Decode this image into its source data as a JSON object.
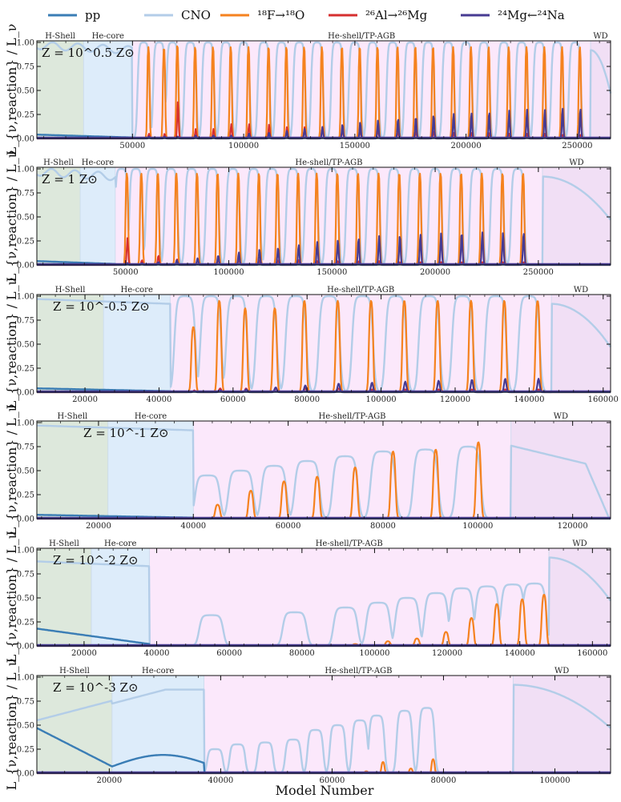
{
  "figure": {
    "xlabel": "Model Number",
    "ylabel": "L_{ν,reaction} / L_ν"
  },
  "legend": [
    {
      "key": "pp",
      "label": "pp",
      "color": "#3a7db5"
    },
    {
      "key": "cno",
      "label": "CNO",
      "color": "#b3cde8"
    },
    {
      "key": "f18",
      "label": "¹⁸F→¹⁸O",
      "color": "#f5821f"
    },
    {
      "key": "al26",
      "label": "²⁶Al→²⁶Mg",
      "color": "#d62f2f"
    },
    {
      "key": "mg24",
      "label": "²⁴Mg←²⁴Na",
      "color": "#473b92"
    }
  ],
  "phase_colors": {
    "hshell": "#dde8dc",
    "hecore": "#ddecfa",
    "agb": "#fbe8fb",
    "wd": "#f1dff5"
  },
  "chart_data": [
    {
      "type": "line",
      "metallicity": "Z = 10^0.5 Z⊙",
      "xlim": [
        7000,
        265000
      ],
      "ylim": [
        0,
        1
      ],
      "xticks": [
        50000,
        100000,
        150000,
        200000,
        250000
      ],
      "yticks": [
        "0.00",
        "0.25",
        "0.50",
        "0.75",
        "1.00"
      ],
      "phases": [
        {
          "name": "H-Shell",
          "start": 7000,
          "end": 28000,
          "kind": "hshell"
        },
        {
          "name": "He-core",
          "start": 28000,
          "end": 50000,
          "kind": "hecore"
        },
        {
          "name": "He-shell/TP-AGB",
          "start": 50000,
          "end": 256000,
          "kind": "agb"
        },
        {
          "name": "WD",
          "start": 256000,
          "end": 265000,
          "kind": "wd"
        }
      ],
      "pulses": [
        {
          "center": 55000,
          "cno": 1.0,
          "f18": 0.98,
          "al26": 0.05,
          "mg24": 0.02
        },
        {
          "center": 62000,
          "cno": 1.0,
          "f18": 0.97,
          "al26": 0.05,
          "mg24": 0.02
        },
        {
          "center": 68000,
          "cno": 1.0,
          "f18": 1.0,
          "al26": 0.39,
          "mg24": 0.02
        },
        {
          "center": 76000,
          "cno": 1.0,
          "f18": 0.98,
          "al26": 0.1,
          "mg24": 0.03
        },
        {
          "center": 84000,
          "cno": 1.0,
          "f18": 0.98,
          "al26": 0.1,
          "mg24": 0.03
        },
        {
          "center": 92000,
          "cno": 1.0,
          "f18": 0.98,
          "al26": 0.15,
          "mg24": 0.03
        },
        {
          "center": 100000,
          "cno": 1.0,
          "f18": 0.98,
          "al26": 0.15,
          "mg24": 0.05
        },
        {
          "center": 109000,
          "cno": 1.0,
          "f18": 0.98,
          "al26": 0.15,
          "mg24": 0.06
        },
        {
          "center": 117000,
          "cno": 1.0,
          "f18": 0.98,
          "al26": 0.12,
          "mg24": 0.08
        },
        {
          "center": 125000,
          "cno": 1.0,
          "f18": 0.98,
          "al26": 0.12,
          "mg24": 0.1
        },
        {
          "center": 133000,
          "cno": 1.0,
          "f18": 0.98,
          "al26": 0.12,
          "mg24": 0.12
        },
        {
          "center": 142000,
          "cno": 1.0,
          "f18": 0.98,
          "al26": 0.1,
          "mg24": 0.15
        },
        {
          "center": 150000,
          "cno": 1.0,
          "f18": 0.98,
          "al26": 0.1,
          "mg24": 0.17
        },
        {
          "center": 158000,
          "cno": 1.0,
          "f18": 0.98,
          "al26": 0.1,
          "mg24": 0.19
        },
        {
          "center": 167000,
          "cno": 1.0,
          "f18": 0.98,
          "al26": 0.08,
          "mg24": 0.21
        },
        {
          "center": 175000,
          "cno": 1.0,
          "f18": 0.98,
          "al26": 0.08,
          "mg24": 0.23
        },
        {
          "center": 183000,
          "cno": 1.0,
          "f18": 0.98,
          "al26": 0.08,
          "mg24": 0.25
        },
        {
          "center": 192000,
          "cno": 1.0,
          "f18": 0.98,
          "al26": 0.06,
          "mg24": 0.26
        },
        {
          "center": 200000,
          "cno": 1.0,
          "f18": 0.98,
          "al26": 0.06,
          "mg24": 0.27
        },
        {
          "center": 208000,
          "cno": 1.0,
          "f18": 0.98,
          "al26": 0.06,
          "mg24": 0.28
        },
        {
          "center": 217000,
          "cno": 1.0,
          "f18": 0.98,
          "al26": 0.05,
          "mg24": 0.29
        },
        {
          "center": 225000,
          "cno": 1.0,
          "f18": 0.98,
          "al26": 0.05,
          "mg24": 0.3
        },
        {
          "center": 233000,
          "cno": 1.0,
          "f18": 0.98,
          "al26": 0.05,
          "mg24": 0.3
        },
        {
          "center": 241000,
          "cno": 1.0,
          "f18": 0.98,
          "al26": 0.04,
          "mg24": 0.32
        },
        {
          "center": 249000,
          "cno": 1.0,
          "f18": 0.98,
          "al26": 0.04,
          "mg24": 0.32
        }
      ]
    },
    {
      "type": "line",
      "metallicity": "Z = 1 Z⊙",
      "xlim": [
        7000,
        285000
      ],
      "ylim": [
        0,
        1
      ],
      "xticks": [
        50000,
        100000,
        150000,
        200000,
        250000
      ],
      "yticks": [
        "0.00",
        "0.25",
        "0.50",
        "0.75",
        "1.00"
      ],
      "phases": [
        {
          "name": "H-Shell",
          "start": 7000,
          "end": 28000,
          "kind": "hshell"
        },
        {
          "name": "He-core",
          "start": 28000,
          "end": 45000,
          "kind": "hecore"
        },
        {
          "name": "He-shell/TP-AGB",
          "start": 45000,
          "end": 252000,
          "kind": "agb"
        },
        {
          "name": "WD",
          "start": 252000,
          "end": 285000,
          "kind": "wd"
        }
      ],
      "pulses": [
        {
          "center": 48000,
          "cno": 1.0,
          "f18": 0.98,
          "al26": 0.28,
          "mg24": 0.02
        },
        {
          "center": 55000,
          "cno": 1.0,
          "f18": 0.98,
          "al26": 0.05,
          "mg24": 0.02
        },
        {
          "center": 63000,
          "cno": 1.0,
          "f18": 0.98,
          "al26": 0.1,
          "mg24": 0.03
        },
        {
          "center": 72000,
          "cno": 1.0,
          "f18": 0.98,
          "al26": 0.06,
          "mg24": 0.05
        },
        {
          "center": 82000,
          "cno": 1.0,
          "f18": 0.98,
          "al26": 0.06,
          "mg24": 0.07
        },
        {
          "center": 92000,
          "cno": 1.0,
          "f18": 0.98,
          "al26": 0.06,
          "mg24": 0.1
        },
        {
          "center": 102000,
          "cno": 1.0,
          "f18": 0.98,
          "al26": 0.06,
          "mg24": 0.13
        },
        {
          "center": 112000,
          "cno": 1.0,
          "f18": 0.98,
          "al26": 0.05,
          "mg24": 0.16
        },
        {
          "center": 121000,
          "cno": 1.0,
          "f18": 0.98,
          "al26": 0.05,
          "mg24": 0.18
        },
        {
          "center": 131000,
          "cno": 1.0,
          "f18": 0.98,
          "al26": 0.05,
          "mg24": 0.21
        },
        {
          "center": 140000,
          "cno": 1.0,
          "f18": 0.98,
          "al26": 0.04,
          "mg24": 0.24
        },
        {
          "center": 150000,
          "cno": 1.0,
          "f18": 0.98,
          "al26": 0.04,
          "mg24": 0.26
        },
        {
          "center": 160000,
          "cno": 1.0,
          "f18": 0.98,
          "al26": 0.04,
          "mg24": 0.28
        },
        {
          "center": 170000,
          "cno": 1.0,
          "f18": 0.98,
          "al26": 0.04,
          "mg24": 0.3
        },
        {
          "center": 180000,
          "cno": 1.0,
          "f18": 0.98,
          "al26": 0.03,
          "mg24": 0.31
        },
        {
          "center": 190000,
          "cno": 1.0,
          "f18": 0.98,
          "al26": 0.03,
          "mg24": 0.32
        },
        {
          "center": 200000,
          "cno": 1.0,
          "f18": 0.98,
          "al26": 0.03,
          "mg24": 0.33
        },
        {
          "center": 210000,
          "cno": 1.0,
          "f18": 0.98,
          "al26": 0.03,
          "mg24": 0.34
        },
        {
          "center": 220000,
          "cno": 1.0,
          "f18": 0.98,
          "al26": 0.03,
          "mg24": 0.34
        },
        {
          "center": 230000,
          "cno": 1.0,
          "f18": 0.98,
          "al26": 0.03,
          "mg24": 0.34
        },
        {
          "center": 240000,
          "cno": 1.0,
          "f18": 0.98,
          "al26": 0.03,
          "mg24": 0.34
        }
      ]
    },
    {
      "type": "line",
      "metallicity": "Z = 10^-0.5 Z⊙",
      "xlim": [
        7000,
        162000
      ],
      "ylim": [
        0,
        1
      ],
      "xticks": [
        20000,
        40000,
        60000,
        80000,
        100000,
        120000,
        140000,
        160000
      ],
      "yticks": [
        "0.00",
        "0.25",
        "0.50",
        "0.75",
        "1.00"
      ],
      "phases": [
        {
          "name": "H-Shell",
          "start": 7000,
          "end": 25000,
          "kind": "hshell"
        },
        {
          "name": "He-core",
          "start": 25000,
          "end": 43000,
          "kind": "hecore"
        },
        {
          "name": "He-shell/TP-AGB",
          "start": 43000,
          "end": 146000,
          "kind": "agb"
        },
        {
          "name": "WD",
          "start": 146000,
          "end": 162000,
          "kind": "wd"
        }
      ],
      "pulses": [
        {
          "center": 47000,
          "cno": 1.0,
          "f18": 0.7,
          "al26": 0.02,
          "mg24": 0.01
        },
        {
          "center": 54000,
          "cno": 1.0,
          "f18": 0.98,
          "al26": 0.04,
          "mg24": 0.02
        },
        {
          "center": 61000,
          "cno": 1.0,
          "f18": 0.9,
          "al26": 0.04,
          "mg24": 0.03
        },
        {
          "center": 69000,
          "cno": 1.0,
          "f18": 0.9,
          "al26": 0.04,
          "mg24": 0.05
        },
        {
          "center": 77000,
          "cno": 1.0,
          "f18": 0.98,
          "al26": 0.04,
          "mg24": 0.07
        },
        {
          "center": 86000,
          "cno": 1.0,
          "f18": 0.98,
          "al26": 0.04,
          "mg24": 0.09
        },
        {
          "center": 95000,
          "cno": 1.0,
          "f18": 0.98,
          "al26": 0.03,
          "mg24": 0.1
        },
        {
          "center": 104000,
          "cno": 1.0,
          "f18": 0.98,
          "al26": 0.03,
          "mg24": 0.11
        },
        {
          "center": 113000,
          "cno": 1.0,
          "f18": 0.98,
          "al26": 0.03,
          "mg24": 0.12
        },
        {
          "center": 122000,
          "cno": 1.0,
          "f18": 0.98,
          "al26": 0.03,
          "mg24": 0.13
        },
        {
          "center": 131000,
          "cno": 1.0,
          "f18": 0.98,
          "al26": 0.03,
          "mg24": 0.14
        },
        {
          "center": 140000,
          "cno": 1.0,
          "f18": 0.98,
          "al26": 0.03,
          "mg24": 0.14
        }
      ]
    },
    {
      "type": "line",
      "metallicity": "Z = 10^-1 Z⊙",
      "xlim": [
        7000,
        128000
      ],
      "ylim": [
        0,
        1
      ],
      "xticks": [
        20000,
        40000,
        60000,
        80000,
        100000,
        120000
      ],
      "yticks": [
        "0.00",
        "0.25",
        "0.50",
        "0.75",
        "1.00"
      ],
      "phases": [
        {
          "name": "H-Shell",
          "start": 7000,
          "end": 22000,
          "kind": "hshell"
        },
        {
          "name": "He-core",
          "start": 22000,
          "end": 40000,
          "kind": "hecore"
        },
        {
          "name": "He-shell/TP-AGB",
          "start": 40000,
          "end": 107000,
          "kind": "agb"
        },
        {
          "name": "WD",
          "start": 107000,
          "end": 128000,
          "kind": "wd"
        }
      ],
      "pulses": [
        {
          "center": 43000,
          "cno": 0.45,
          "f18": 0.15,
          "al26": 0.0,
          "mg24": 0.0
        },
        {
          "center": 50000,
          "cno": 0.5,
          "f18": 0.3,
          "al26": 0.0,
          "mg24": 0.0
        },
        {
          "center": 57000,
          "cno": 0.55,
          "f18": 0.4,
          "al26": 0.0,
          "mg24": 0.0
        },
        {
          "center": 64000,
          "cno": 0.6,
          "f18": 0.45,
          "al26": 0.0,
          "mg24": 0.0
        },
        {
          "center": 72000,
          "cno": 0.65,
          "f18": 0.55,
          "al26": 0.0,
          "mg24": 0.0
        },
        {
          "center": 80000,
          "cno": 0.7,
          "f18": 0.72,
          "al26": 0.0,
          "mg24": 0.01
        },
        {
          "center": 89000,
          "cno": 0.72,
          "f18": 0.74,
          "al26": 0.0,
          "mg24": 0.01
        },
        {
          "center": 98000,
          "cno": 0.75,
          "f18": 0.82,
          "al26": 0.0,
          "mg24": 0.01
        }
      ]
    },
    {
      "type": "line",
      "metallicity": "Z = 10^-2 Z⊙",
      "xlim": [
        7000,
        165000
      ],
      "ylim": [
        0,
        1
      ],
      "xticks": [
        20000,
        40000,
        60000,
        80000,
        100000,
        120000,
        140000,
        160000
      ],
      "yticks": [
        "0.00",
        "0.25",
        "0.50",
        "0.75",
        "1.00"
      ],
      "phases": [
        {
          "name": "H-Shell",
          "start": 7000,
          "end": 22000,
          "kind": "hshell"
        },
        {
          "name": "He-core",
          "start": 22000,
          "end": 38000,
          "kind": "hecore"
        },
        {
          "name": "He-shell/TP-AGB",
          "start": 38000,
          "end": 148000,
          "kind": "agb"
        },
        {
          "name": "WD",
          "start": 148000,
          "end": 165000,
          "kind": "wd"
        }
      ],
      "pulses": [
        {
          "center": 55000,
          "cno": 0.32,
          "f18": 0.0,
          "al26": 0.0,
          "mg24": 0.0
        },
        {
          "center": 78000,
          "cno": 0.35,
          "f18": 0.0,
          "al26": 0.0,
          "mg24": 0.0
        },
        {
          "center": 92000,
          "cno": 0.4,
          "f18": 0.02,
          "al26": 0.0,
          "mg24": 0.0
        },
        {
          "center": 101000,
          "cno": 0.45,
          "f18": 0.05,
          "al26": 0.0,
          "mg24": 0.0
        },
        {
          "center": 109000,
          "cno": 0.5,
          "f18": 0.08,
          "al26": 0.0,
          "mg24": 0.0
        },
        {
          "center": 117000,
          "cno": 0.55,
          "f18": 0.15,
          "al26": 0.0,
          "mg24": 0.0
        },
        {
          "center": 124000,
          "cno": 0.6,
          "f18": 0.3,
          "al26": 0.0,
          "mg24": 0.0
        },
        {
          "center": 131000,
          "cno": 0.62,
          "f18": 0.45,
          "al26": 0.0,
          "mg24": 0.0
        },
        {
          "center": 138000,
          "cno": 0.64,
          "f18": 0.5,
          "al26": 0.0,
          "mg24": 0.0
        },
        {
          "center": 144000,
          "cno": 0.65,
          "f18": 0.55,
          "al26": 0.0,
          "mg24": 0.0
        }
      ]
    },
    {
      "type": "line",
      "metallicity": "Z = 10^-3 Z⊙",
      "xlim": [
        7000,
        110000
      ],
      "ylim": [
        0,
        1
      ],
      "xticks": [
        20000,
        40000,
        60000,
        80000,
        100000
      ],
      "yticks": [
        "0.00",
        "0.25",
        "0.50",
        "0.75",
        "1.00"
      ],
      "phases": [
        {
          "name": "H-Shell",
          "start": 7000,
          "end": 20500,
          "kind": "hshell"
        },
        {
          "name": "He-core",
          "start": 20500,
          "end": 37000,
          "kind": "hecore"
        },
        {
          "name": "He-shell/TP-AGB",
          "start": 37000,
          "end": 92500,
          "kind": "agb"
        },
        {
          "name": "WD",
          "start": 92500,
          "end": 110000,
          "kind": "wd"
        }
      ],
      "pulses": [
        {
          "center": 39000,
          "cno": 0.25,
          "f18": 0.0,
          "al26": 0.0,
          "mg24": 0.0
        },
        {
          "center": 43000,
          "cno": 0.3,
          "f18": 0.0,
          "al26": 0.0,
          "mg24": 0.0
        },
        {
          "center": 48000,
          "cno": 0.32,
          "f18": 0.0,
          "al26": 0.0,
          "mg24": 0.0
        },
        {
          "center": 53000,
          "cno": 0.35,
          "f18": 0.0,
          "al26": 0.0,
          "mg24": 0.0
        },
        {
          "center": 57000,
          "cno": 0.45,
          "f18": 0.0,
          "al26": 0.0,
          "mg24": 0.0
        },
        {
          "center": 61000,
          "cno": 0.5,
          "f18": 0.0,
          "al26": 0.0,
          "mg24": 0.0
        },
        {
          "center": 65000,
          "cno": 0.55,
          "f18": 0.02,
          "al26": 0.0,
          "mg24": 0.0
        },
        {
          "center": 68000,
          "cno": 0.6,
          "f18": 0.12,
          "al26": 0.0,
          "mg24": 0.0
        },
        {
          "center": 73000,
          "cno": 0.65,
          "f18": 0.05,
          "al26": 0.0,
          "mg24": 0.0
        },
        {
          "center": 77000,
          "cno": 0.68,
          "f18": 0.15,
          "al26": 0.0,
          "mg24": 0.0
        }
      ]
    }
  ]
}
